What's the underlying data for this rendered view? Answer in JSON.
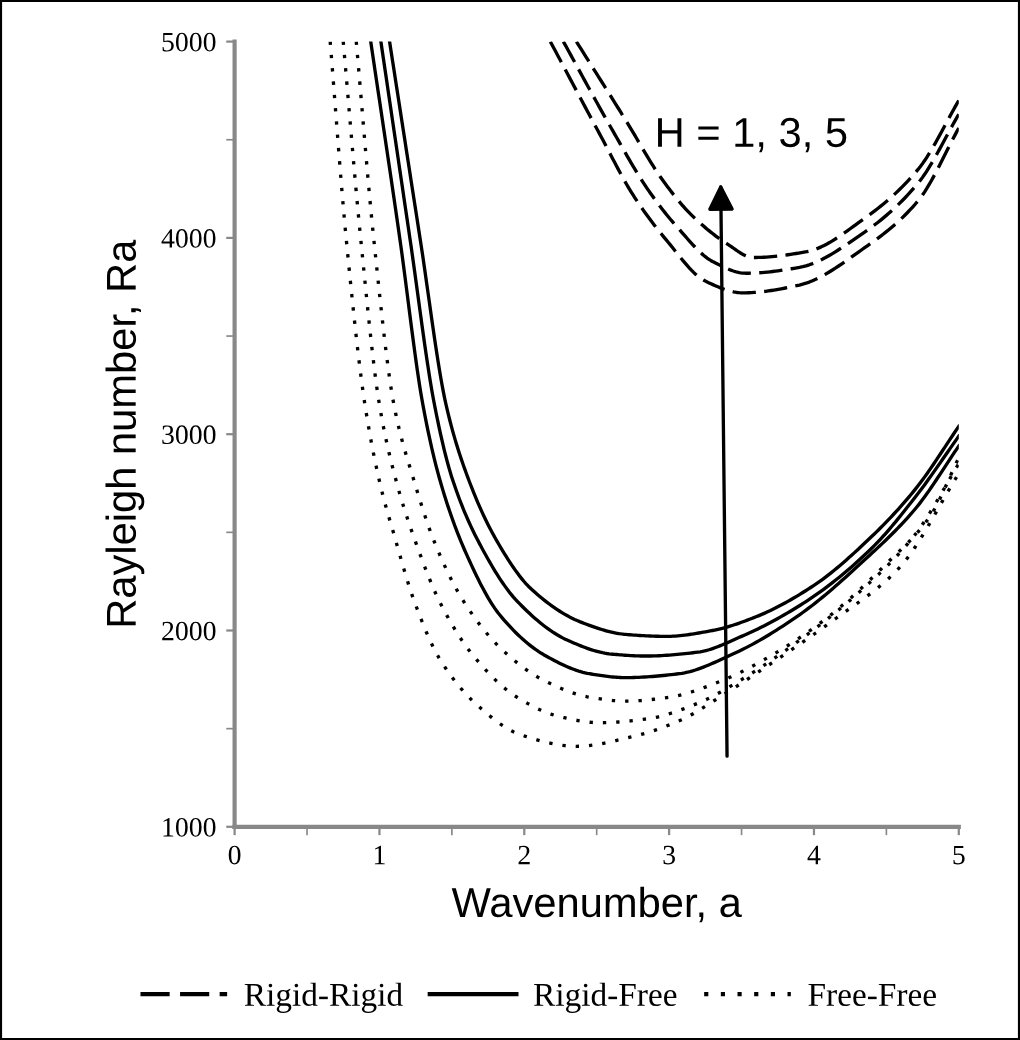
{
  "chart_data": {
    "type": "line",
    "xlabel": "Wavenumber, a",
    "ylabel": "Rayleigh number, Ra",
    "xlim": [
      0,
      5
    ],
    "ylim": [
      1000,
      5000
    ],
    "xticks": [
      0,
      1,
      2,
      3,
      4,
      5
    ],
    "yticks": [
      1000,
      2000,
      3000,
      4000,
      5000
    ],
    "grid": false,
    "legend": "bottom",
    "marker": "none",
    "series": [
      {
        "name": "Rigid-Rigid",
        "color": "#000000",
        "line_style": "dashed",
        "x": [
          2.18,
          2.52,
          2.75,
          2.98,
          3.25,
          3.51,
          3.9,
          4.35,
          4.72,
          5
        ],
        "values": [
          5000,
          4530,
          4220,
          3990,
          3780,
          3720,
          3760,
          3950,
          4190,
          4560
        ]
      },
      {
        "color": "#000000",
        "line_style": "dashed",
        "x": [
          2.27,
          2.6,
          2.85,
          3.05,
          3.3,
          3.53,
          3.9,
          4.35,
          4.72,
          5
        ],
        "values": [
          5000,
          4560,
          4250,
          4060,
          3880,
          3820,
          3850,
          4030,
          4280,
          4630
        ]
      },
      {
        "color": "#000000",
        "line_style": "dashed",
        "x": [
          2.36,
          2.7,
          2.95,
          3.15,
          3.4,
          3.58,
          3.95,
          4.35,
          4.72,
          5
        ],
        "values": [
          5000,
          4600,
          4300,
          4120,
          3970,
          3900,
          3930,
          4100,
          4350,
          4700
        ]
      },
      {
        "name": "Rigid-Free",
        "color": "#000000",
        "line_style": "solid",
        "x": [
          0.94,
          1.14,
          1.3,
          1.42,
          1.6,
          1.83,
          2.15,
          2.45,
          2.7,
          3.07,
          3.44,
          3.9,
          4.35,
          4.7,
          5
        ],
        "values": [
          5000,
          4000,
          3150,
          2760,
          2390,
          2080,
          1870,
          1780,
          1760,
          1780,
          1880,
          2080,
          2360,
          2620,
          2940
        ]
      },
      {
        "color": "#000000",
        "line_style": "solid",
        "x": [
          1.01,
          1.21,
          1.38,
          1.5,
          1.7,
          1.95,
          2.3,
          2.6,
          2.84,
          3.2,
          3.5,
          3.95,
          4.4,
          4.7,
          5
        ],
        "values": [
          5000,
          4000,
          3150,
          2780,
          2430,
          2150,
          1950,
          1880,
          1870,
          1890,
          1970,
          2150,
          2420,
          2680,
          2990
        ]
      },
      {
        "color": "#000000",
        "line_style": "solid",
        "x": [
          1.07,
          1.28,
          1.46,
          1.6,
          1.8,
          2.05,
          2.4,
          2.7,
          2.98,
          3.3,
          3.6,
          4.0,
          4.4,
          4.7,
          5
        ],
        "values": [
          5000,
          4000,
          3150,
          2800,
          2470,
          2210,
          2040,
          1980,
          1970,
          2000,
          2070,
          2230,
          2480,
          2720,
          3040
        ]
      },
      {
        "name": "Free-Free",
        "color": "#000000",
        "line_style": "dotted",
        "x": [
          0.66,
          0.77,
          0.9,
          1.01,
          1.1,
          1.24,
          1.42,
          1.69,
          1.97,
          2.36,
          2.75,
          3.07,
          3.39,
          3.66,
          4.13,
          4.59,
          5
        ],
        "values": [
          5000,
          4000,
          3150,
          2730,
          2490,
          2150,
          1850,
          1610,
          1470,
          1410,
          1460,
          1540,
          1680,
          1810,
          2050,
          2320,
          2800
        ]
      },
      {
        "color": "#000000",
        "line_style": "dotted",
        "x": [
          0.75,
          0.87,
          1.0,
          1.12,
          1.25,
          1.42,
          1.65,
          1.95,
          2.25,
          2.52,
          2.85,
          3.2,
          3.5,
          3.9,
          4.35,
          4.7,
          5
        ],
        "values": [
          5000,
          4000,
          3150,
          2750,
          2450,
          2140,
          1870,
          1660,
          1560,
          1530,
          1550,
          1630,
          1750,
          1950,
          2220,
          2490,
          2850
        ]
      },
      {
        "color": "#000000",
        "line_style": "dotted",
        "x": [
          0.84,
          0.96,
          1.1,
          1.24,
          1.38,
          1.58,
          1.85,
          2.15,
          2.45,
          2.7,
          3.0,
          3.35,
          3.7,
          4.1,
          4.5,
          4.8,
          5
        ],
        "values": [
          5000,
          4000,
          3150,
          2760,
          2450,
          2150,
          1900,
          1740,
          1660,
          1640,
          1660,
          1740,
          1870,
          2070,
          2340,
          2580,
          2880
        ]
      }
    ],
    "annotations": [
      "H = 1, 3, 5"
    ]
  }
}
